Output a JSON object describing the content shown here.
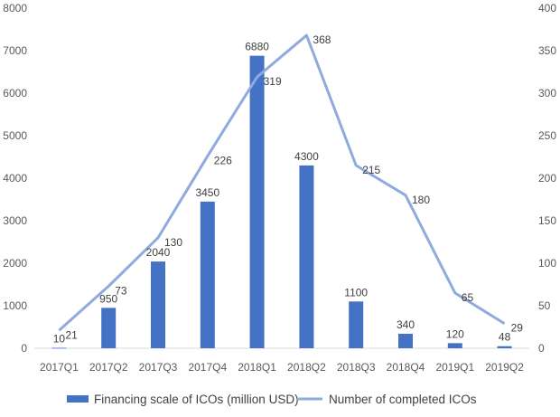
{
  "chart_data": {
    "type": "bar",
    "categories": [
      "2017Q1",
      "2017Q2",
      "2017Q3",
      "2017Q4",
      "2018Q1",
      "2018Q2",
      "2018Q3",
      "2018Q4",
      "2019Q1",
      "2019Q2"
    ],
    "series": [
      {
        "name": "Financing scale of ICOs (million USD)",
        "type": "bar",
        "axis": "left",
        "color": "#4472c4",
        "values": [
          10,
          950,
          2040,
          3450,
          6880,
          4300,
          1100,
          340,
          120,
          48
        ],
        "labels": [
          "10",
          "950",
          "2040",
          "3450",
          "6880",
          "4300",
          "1100",
          "340",
          "120",
          "48"
        ]
      },
      {
        "name": "Number of completed ICOs",
        "type": "line",
        "axis": "right",
        "color": "#8faadc",
        "values": [
          21,
          73,
          130,
          226,
          319,
          368,
          215,
          180,
          65,
          29
        ],
        "labels": [
          "21",
          "73",
          "130",
          "226",
          "319",
          "368",
          "215",
          "180",
          "65",
          "29"
        ]
      }
    ],
    "y_left": {
      "min": 0,
      "max": 8000,
      "ticks": [
        "0",
        "1000",
        "2000",
        "3000",
        "4000",
        "5000",
        "6000",
        "7000",
        "8000"
      ]
    },
    "y_right": {
      "min": 0,
      "max": 400,
      "ticks": [
        "0",
        "50",
        "100",
        "150",
        "200",
        "250",
        "300",
        "350",
        "400"
      ]
    },
    "grid": false,
    "legend_position": "bottom"
  }
}
